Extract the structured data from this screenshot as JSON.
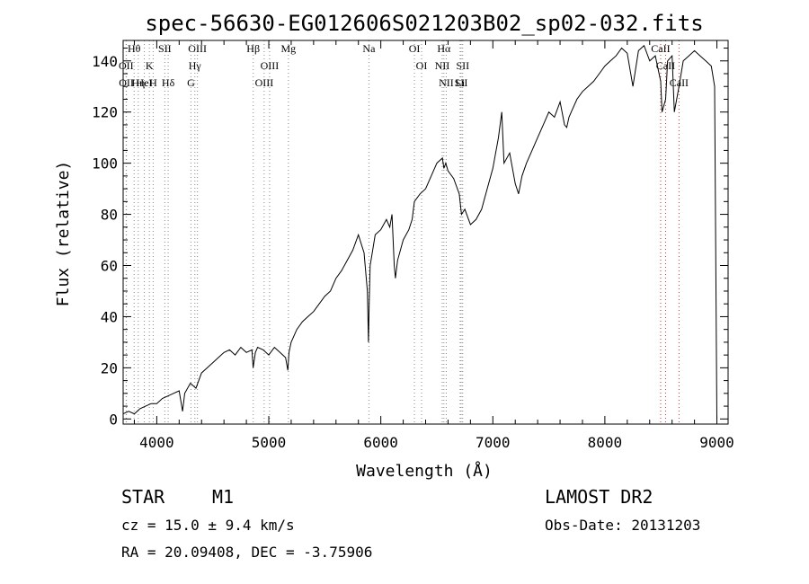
{
  "chart_data": {
    "type": "line",
    "title": "spec-56630-EG012606S021203B02_sp02-032.fits",
    "xlabel": "Wavelength (Å)",
    "ylabel": "Flux (relative)",
    "xlim": [
      3700,
      9100
    ],
    "ylim": [
      -2,
      148
    ],
    "xticks": [
      4000,
      5000,
      6000,
      7000,
      8000,
      9000
    ],
    "yticks": [
      0,
      20,
      40,
      60,
      80,
      100,
      120,
      140
    ],
    "grid": false,
    "series": [
      {
        "color": "#000000",
        "x": [
          3700,
          3750,
          3800,
          3850,
          3900,
          3950,
          4000,
          4050,
          4100,
          4150,
          4200,
          4230,
          4250,
          4300,
          4350,
          4400,
          4450,
          4500,
          4550,
          4600,
          4650,
          4700,
          4750,
          4800,
          4850,
          4860,
          4880,
          4900,
          4950,
          5000,
          5050,
          5100,
          5150,
          5170,
          5180,
          5200,
          5250,
          5300,
          5350,
          5400,
          5450,
          5500,
          5550,
          5600,
          5650,
          5700,
          5750,
          5800,
          5850,
          5880,
          5890,
          5896,
          5905,
          5920,
          5950,
          6000,
          6050,
          6080,
          6100,
          6120,
          6130,
          6150,
          6200,
          6250,
          6280,
          6300,
          6350,
          6400,
          6450,
          6500,
          6550,
          6563,
          6580,
          6600,
          6650,
          6700,
          6720,
          6750,
          6800,
          6850,
          6900,
          6950,
          7000,
          7050,
          7080,
          7100,
          7150,
          7200,
          7230,
          7260,
          7300,
          7350,
          7400,
          7450,
          7500,
          7550,
          7600,
          7640,
          7660,
          7680,
          7700,
          7750,
          7800,
          7850,
          7900,
          7950,
          8000,
          8050,
          8100,
          8150,
          8200,
          8250,
          8300,
          8350,
          8400,
          8450,
          8498,
          8510,
          8542,
          8560,
          8600,
          8620,
          8662,
          8700,
          8750,
          8800,
          8850,
          8900,
          8950,
          8980,
          9000
        ],
        "y": [
          2,
          3,
          2,
          4,
          5,
          6,
          6,
          8,
          9,
          10,
          11,
          3,
          10,
          14,
          12,
          18,
          20,
          22,
          24,
          26,
          27,
          25,
          28,
          26,
          27,
          20,
          26,
          28,
          27,
          25,
          28,
          26,
          24,
          19,
          26,
          30,
          35,
          38,
          40,
          42,
          45,
          48,
          50,
          55,
          58,
          62,
          66,
          72,
          65,
          50,
          30,
          45,
          60,
          64,
          72,
          74,
          78,
          75,
          80,
          60,
          55,
          62,
          70,
          74,
          78,
          85,
          88,
          90,
          95,
          100,
          102,
          98,
          100,
          97,
          94,
          88,
          80,
          82,
          76,
          78,
          82,
          90,
          98,
          110,
          120,
          100,
          104,
          92,
          88,
          95,
          100,
          105,
          110,
          115,
          120,
          118,
          124,
          115,
          114,
          118,
          120,
          125,
          128,
          130,
          132,
          135,
          138,
          140,
          142,
          145,
          143,
          130,
          144,
          146,
          140,
          142,
          132,
          120,
          125,
          140,
          142,
          120,
          130,
          140,
          142,
          144,
          142,
          140,
          138,
          130,
          0
        ]
      }
    ],
    "line_markers": [
      {
        "label": "Hθ",
        "x": 3798
      },
      {
        "label": "OII",
        "x": 3727
      },
      {
        "label": "OII",
        "x": 3729
      },
      {
        "label": "HeI",
        "x": 3889
      },
      {
        "label": "Hη",
        "x": 3835
      },
      {
        "label": "K",
        "x": 3934
      },
      {
        "label": "H",
        "x": 3968
      },
      {
        "label": "SII",
        "x": 4072
      },
      {
        "label": "Hδ",
        "x": 4102
      },
      {
        "label": "OIII",
        "x": 4363
      },
      {
        "label": "Hγ",
        "x": 4340
      },
      {
        "label": "G",
        "x": 4305
      },
      {
        "label": "Hβ",
        "x": 4861
      },
      {
        "label": "OIII",
        "x": 5007
      },
      {
        "label": "OIII",
        "x": 4959
      },
      {
        "label": "Mg",
        "x": 5175
      },
      {
        "label": "Na",
        "x": 5894
      },
      {
        "label": "OI",
        "x": 6300
      },
      {
        "label": "OI",
        "x": 6364
      },
      {
        "label": "Hα",
        "x": 6563
      },
      {
        "label": "NII",
        "x": 6548
      },
      {
        "label": "NII",
        "x": 6584
      },
      {
        "label": "SII",
        "x": 6717
      },
      {
        "label": "SII",
        "x": 6731
      },
      {
        "label": "Li",
        "x": 6708
      },
      {
        "label": "CaII",
        "x": 8498
      },
      {
        "label": "CaII",
        "x": 8542
      },
      {
        "label": "CaII",
        "x": 8662
      }
    ],
    "annotations": {
      "class": "STAR",
      "subclass": "M1",
      "survey": "LAMOST DR2",
      "redshift": "cz = 15.0 ± 9.4 km/s",
      "obs_date": "Obs-Date: 20131203",
      "coords": "RA =  20.09408, DEC =  -3.75906"
    }
  }
}
